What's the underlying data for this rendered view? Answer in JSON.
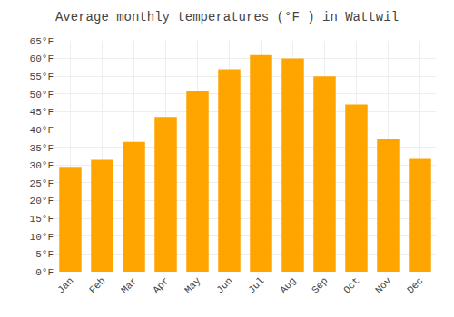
{
  "chart_data": {
    "type": "bar",
    "title": "Average monthly temperatures (°F ) in Wattwil",
    "categories": [
      "Jan",
      "Feb",
      "Mar",
      "Apr",
      "May",
      "Jun",
      "Jul",
      "Aug",
      "Sep",
      "Oct",
      "Nov",
      "Dec"
    ],
    "values": [
      29.5,
      31.5,
      36.5,
      43.5,
      51.0,
      57.0,
      61.0,
      60.0,
      55.0,
      47.0,
      37.5,
      32.0
    ],
    "color": "#FFA500",
    "ylim": [
      0,
      65
    ],
    "yticks": [
      {
        "value": 0,
        "label": "0°F"
      },
      {
        "value": 5,
        "label": "5°F"
      },
      {
        "value": 10,
        "label": "10°F"
      },
      {
        "value": 15,
        "label": "15°F"
      },
      {
        "value": 20,
        "label": "20°F"
      },
      {
        "value": 25,
        "label": "25°F"
      },
      {
        "value": 30,
        "label": "30°F"
      },
      {
        "value": 35,
        "label": "35°F"
      },
      {
        "value": 40,
        "label": "40°F"
      },
      {
        "value": 45,
        "label": "45°F"
      },
      {
        "value": 50,
        "label": "50°F"
      },
      {
        "value": 55,
        "label": "55°F"
      },
      {
        "value": 60,
        "label": "60°F"
      },
      {
        "value": 65,
        "label": "65°F"
      }
    ],
    "grid": true
  }
}
